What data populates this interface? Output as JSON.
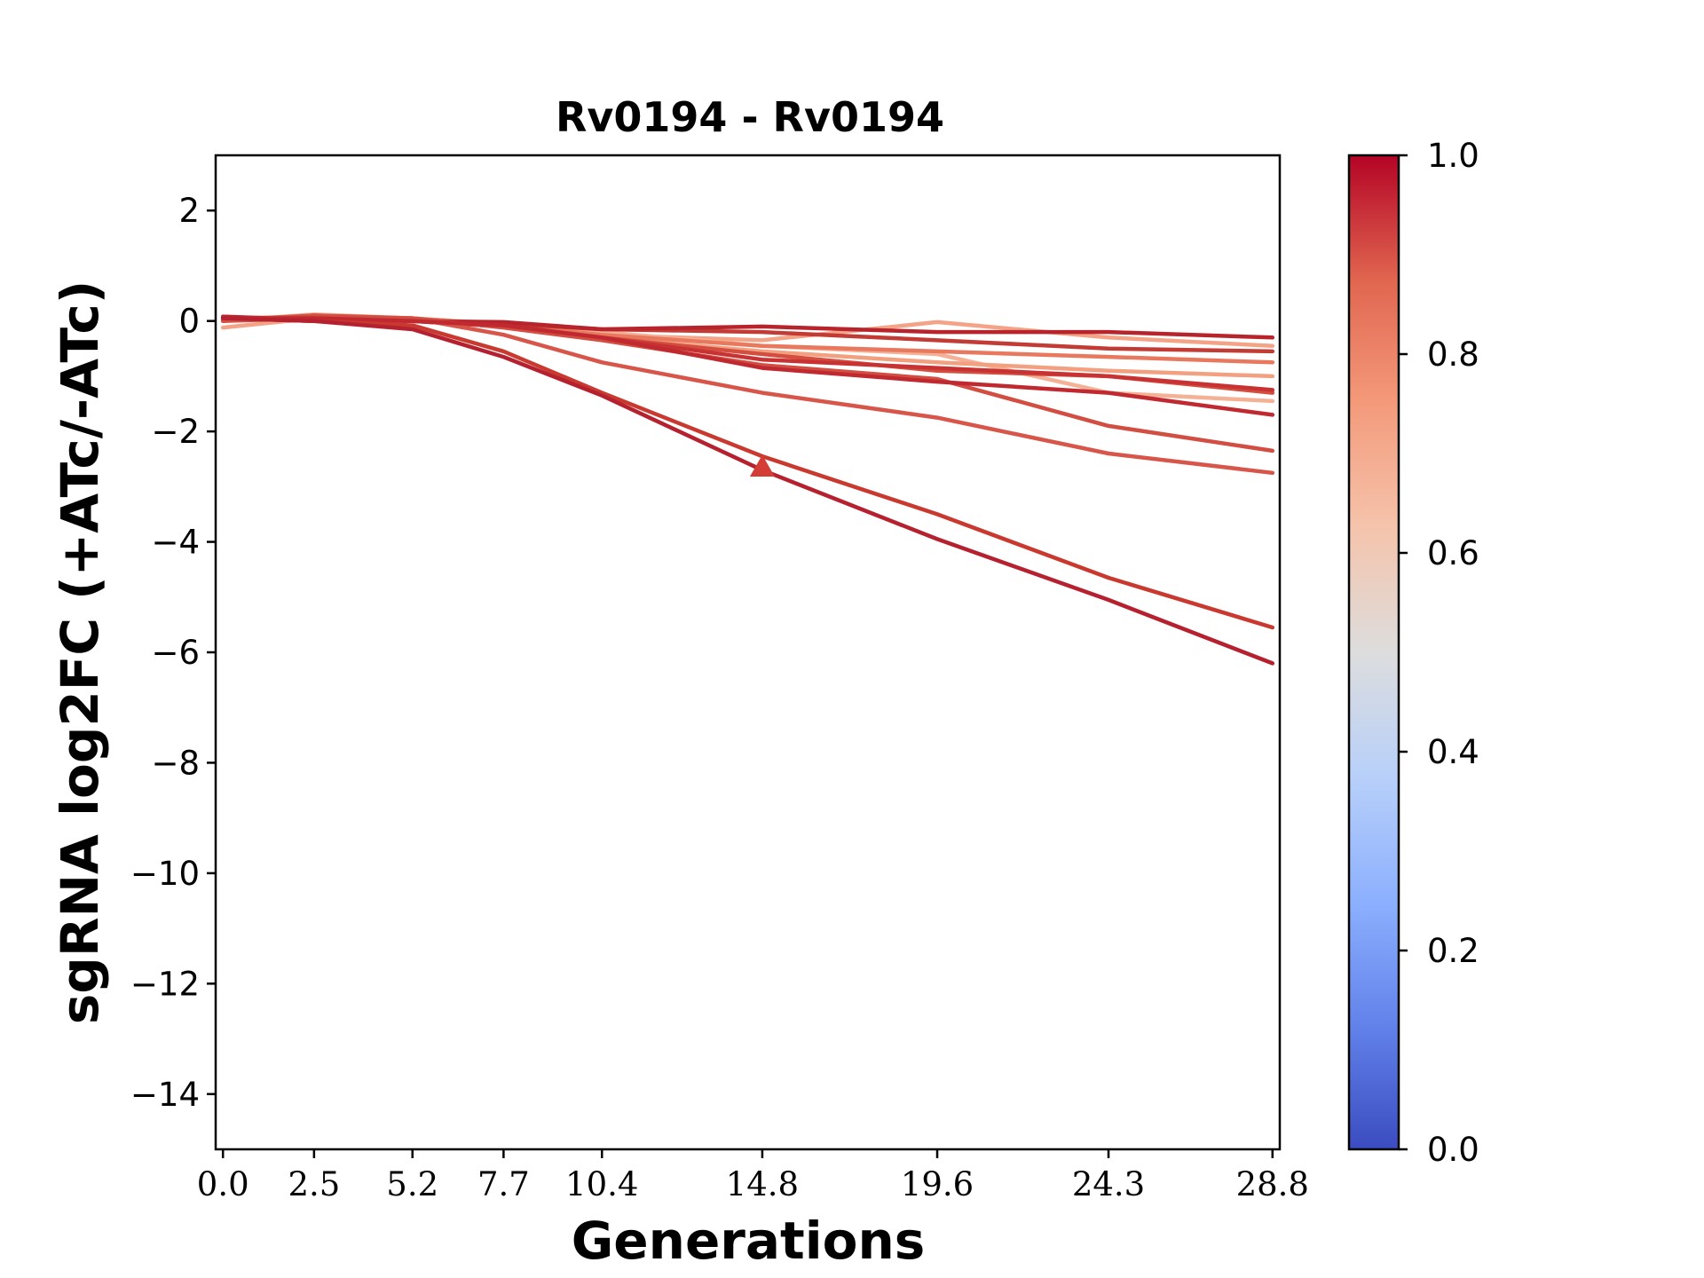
{
  "chart_data": {
    "type": "line",
    "title": "Rv0194 - Rv0194",
    "xlabel": "Generations",
    "ylabel": "sgRNA log2FC (+ATc/-ATc)",
    "x": [
      0.0,
      2.5,
      5.2,
      7.7,
      10.4,
      14.8,
      19.6,
      24.3,
      28.8
    ],
    "x_tick_labels": [
      "0.0",
      "2.5",
      "5.2",
      "7.7",
      "10.4",
      "14.8",
      "19.6",
      "24.3",
      "28.8"
    ],
    "xlim": [
      -0.2,
      29.0
    ],
    "ylim": [
      -15,
      3
    ],
    "y_ticks": [
      2,
      0,
      -2,
      -4,
      -6,
      -8,
      -10,
      -12,
      -14
    ],
    "y_tick_labels": [
      "2",
      "0",
      "−2",
      "−4",
      "−6",
      "−8",
      "−10",
      "−12",
      "−14"
    ],
    "grid": false,
    "colorbar": {
      "colormap": "coolwarm",
      "min": 0.0,
      "max": 1.0,
      "tick_labels": [
        "0.0",
        "0.2",
        "0.4",
        "0.6",
        "0.8",
        "1.0"
      ],
      "stops": [
        "#3b4cc0",
        "#6282ea",
        "#8db0fe",
        "#b8d0f9",
        "#dddddd",
        "#f5c4ac",
        "#f49a7b",
        "#e0654f",
        "#b40426"
      ]
    },
    "marker": {
      "shape": "triangle",
      "x": 14.8,
      "y": -2.65,
      "color": "#d43d36"
    },
    "series": [
      {
        "color": "#f4a386",
        "values": [
          -0.12,
          0.05,
          0.0,
          -0.1,
          -0.25,
          -0.35,
          -0.02,
          -0.3,
          -0.45
        ]
      },
      {
        "color": "#f5b196",
        "values": [
          0.0,
          0.12,
          0.05,
          -0.05,
          -0.2,
          -0.45,
          -0.6,
          -1.3,
          -1.45
        ]
      },
      {
        "color": "#f3a080",
        "values": [
          0.05,
          0.08,
          0.02,
          -0.1,
          -0.3,
          -0.55,
          -0.75,
          -0.9,
          -1.0
        ]
      },
      {
        "color": "#e8785e",
        "values": [
          0.02,
          0.1,
          0.05,
          -0.08,
          -0.25,
          -0.45,
          -0.55,
          -0.65,
          -0.75
        ]
      },
      {
        "color": "#d44e40",
        "values": [
          0.0,
          0.05,
          0.0,
          -0.1,
          -0.3,
          -0.6,
          -0.9,
          -1.0,
          -1.3
        ]
      },
      {
        "color": "#c23b34",
        "values": [
          0.05,
          0.0,
          0.02,
          -0.05,
          -0.15,
          -0.2,
          -0.35,
          -0.5,
          -0.55
        ]
      },
      {
        "color": "#b8242b",
        "values": [
          0.08,
          0.02,
          0.0,
          -0.02,
          -0.15,
          -0.1,
          -0.2,
          -0.2,
          -0.3
        ]
      },
      {
        "color": "#c83232",
        "values": [
          0.03,
          0.05,
          0.0,
          -0.1,
          -0.3,
          -0.7,
          -0.85,
          -1.0,
          -1.25
        ]
      },
      {
        "color": "#d8554a",
        "values": [
          0.0,
          0.1,
          0.05,
          -0.25,
          -0.75,
          -1.3,
          -1.75,
          -2.4,
          -2.75
        ]
      },
      {
        "color": "#d24d42",
        "values": [
          0.02,
          0.08,
          0.05,
          -0.12,
          -0.35,
          -0.8,
          -1.05,
          -1.9,
          -2.35
        ]
      },
      {
        "color": "#c0292f",
        "values": [
          0.05,
          0.05,
          0.0,
          -0.08,
          -0.3,
          -0.85,
          -1.1,
          -1.3,
          -1.7
        ]
      },
      {
        "color": "#c9392f",
        "values": [
          0.05,
          0.0,
          -0.08,
          -0.55,
          -1.3,
          -2.45,
          -3.5,
          -4.65,
          -5.55
        ]
      },
      {
        "color": "#b62130",
        "values": [
          0.05,
          0.0,
          -0.15,
          -0.65,
          -1.35,
          -2.7,
          -3.95,
          -5.05,
          -6.2
        ]
      }
    ]
  }
}
